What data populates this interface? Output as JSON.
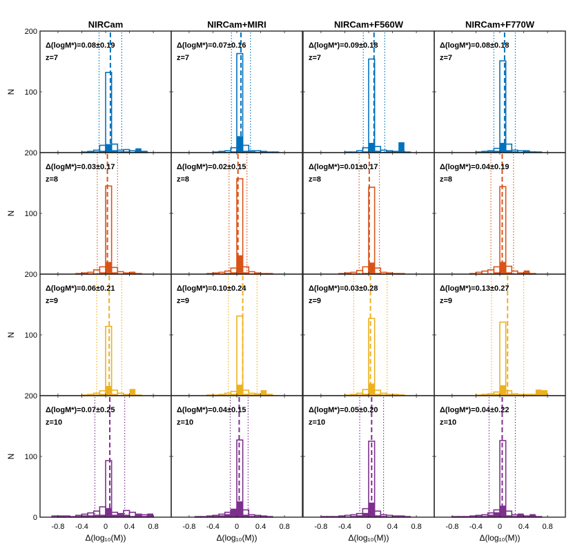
{
  "chart_data": {
    "type": "bar",
    "layout": "4x4 grid of histograms (rows: redshift, columns: filter set)",
    "columns": [
      "NIRCam",
      "NIRCam+MIRI",
      "NIRCam+F560W",
      "NIRCam+F770W"
    ],
    "rows": [
      {
        "z": "z=7",
        "color": "#0072BD"
      },
      {
        "z": "z=8",
        "color": "#D95319"
      },
      {
        "z": "z=9",
        "color": "#EDB120"
      },
      {
        "z": "z=10",
        "color": "#7E2F8E"
      }
    ],
    "xlabel": "Δ(log₁₀(M))",
    "ylabel": "N",
    "xlim": [
      -1.1,
      1.1
    ],
    "ylim": [
      0,
      200
    ],
    "xticks": [
      -0.8,
      -0.4,
      0,
      0.4,
      0.8
    ],
    "xtick_labels": [
      "-0.8",
      "-0.4",
      "0",
      "0.4",
      "0.8"
    ],
    "yticks": [
      0,
      100,
      200
    ],
    "ytick_labels": [
      "0",
      "100",
      "200"
    ],
    "bin_width": 0.1,
    "bin_centers": [
      -0.95,
      -0.85,
      -0.75,
      -0.65,
      -0.55,
      -0.45,
      -0.35,
      -0.25,
      -0.15,
      -0.05,
      0.05,
      0.15,
      0.25,
      0.35,
      0.45,
      0.55,
      0.65,
      0.75,
      0.85,
      0.95
    ],
    "panels": [
      [
        {
          "stat_text": "Δ(logM*)=0.08±0.19",
          "mean": 0.08,
          "sigma": 0.19,
          "outline": [
            0,
            0,
            0,
            0,
            0,
            0,
            1,
            2,
            4,
            12,
            132,
            14,
            4,
            5,
            3,
            2,
            1,
            0,
            0,
            0
          ],
          "filled": [
            0,
            0,
            0,
            0,
            0,
            0,
            0,
            1,
            2,
            3,
            14,
            4,
            2,
            2,
            1,
            7,
            3,
            0,
            0,
            0
          ]
        },
        {
          "stat_text": "Δ(logM*)=0.07±0.16",
          "mean": 0.07,
          "sigma": 0.16,
          "outline": [
            0,
            0,
            0,
            0,
            0,
            0,
            1,
            2,
            3,
            8,
            163,
            12,
            3,
            3,
            2,
            1,
            1,
            0,
            0,
            0
          ],
          "filled": [
            0,
            0,
            0,
            0,
            0,
            0,
            0,
            0,
            1,
            2,
            27,
            3,
            2,
            1,
            2,
            1,
            0,
            0,
            0,
            0
          ]
        },
        {
          "stat_text": "Δ(logM*)=0.09±0.18",
          "mean": 0.09,
          "sigma": 0.18,
          "outline": [
            0,
            0,
            0,
            0,
            0,
            0,
            1,
            1,
            3,
            8,
            154,
            10,
            4,
            3,
            2,
            2,
            1,
            0,
            0,
            0
          ],
          "filled": [
            0,
            0,
            0,
            0,
            0,
            0,
            0,
            0,
            1,
            2,
            16,
            3,
            1,
            2,
            2,
            17,
            1,
            0,
            0,
            0
          ]
        },
        {
          "stat_text": "Δ(logM*)=0.08±0.18",
          "mean": 0.08,
          "sigma": 0.18,
          "outline": [
            0,
            0,
            0,
            0,
            0,
            0,
            1,
            2,
            3,
            7,
            151,
            14,
            4,
            3,
            2,
            1,
            1,
            0,
            0,
            0
          ],
          "filled": [
            0,
            0,
            0,
            0,
            0,
            0,
            0,
            1,
            2,
            3,
            16,
            4,
            2,
            1,
            4,
            2,
            1,
            0,
            0,
            0
          ]
        }
      ],
      [
        {
          "stat_text": "Δ(logM*)=0.03±0.17",
          "mean": 0.03,
          "sigma": 0.17,
          "outline": [
            0,
            0,
            0,
            0,
            0,
            1,
            2,
            3,
            7,
            12,
            145,
            11,
            4,
            2,
            1,
            1,
            0,
            0,
            0,
            0
          ],
          "filled": [
            0,
            0,
            0,
            0,
            0,
            0,
            0,
            1,
            1,
            3,
            20,
            3,
            1,
            1,
            4,
            1,
            0,
            0,
            0,
            0
          ]
        },
        {
          "stat_text": "Δ(logM*)=0.02±0.15",
          "mean": 0.02,
          "sigma": 0.15,
          "outline": [
            0,
            0,
            0,
            0,
            0,
            1,
            2,
            3,
            5,
            10,
            157,
            12,
            4,
            2,
            1,
            1,
            0,
            0,
            0,
            0
          ],
          "filled": [
            0,
            0,
            0,
            0,
            0,
            0,
            0,
            1,
            2,
            3,
            31,
            3,
            1,
            1,
            0,
            0,
            0,
            0,
            0,
            0
          ]
        },
        {
          "stat_text": "Δ(logM*)=0.01±0.17",
          "mean": 0.01,
          "sigma": 0.17,
          "outline": [
            0,
            0,
            0,
            0,
            0,
            1,
            2,
            3,
            6,
            12,
            143,
            10,
            3,
            2,
            1,
            1,
            0,
            0,
            0,
            0
          ],
          "filled": [
            0,
            0,
            0,
            0,
            0,
            0,
            0,
            1,
            1,
            2,
            19,
            2,
            1,
            1,
            0,
            0,
            0,
            0,
            0,
            0
          ]
        },
        {
          "stat_text": "Δ(logM*)=0.04±0.19",
          "mean": 0.04,
          "sigma": 0.19,
          "outline": [
            0,
            0,
            0,
            0,
            0,
            1,
            3,
            5,
            7,
            12,
            144,
            13,
            5,
            2,
            2,
            1,
            0,
            0,
            0,
            0
          ],
          "filled": [
            0,
            0,
            0,
            0,
            0,
            0,
            0,
            1,
            1,
            3,
            20,
            3,
            1,
            2,
            6,
            1,
            0,
            0,
            0,
            0
          ]
        }
      ],
      [
        {
          "stat_text": "Δ(logM*)=0.06±0.21",
          "mean": 0.06,
          "sigma": 0.21,
          "outline": [
            0,
            0,
            0,
            0,
            0,
            0,
            1,
            2,
            4,
            8,
            114,
            9,
            4,
            2,
            1,
            1,
            0,
            0,
            0,
            0
          ],
          "filled": [
            0,
            0,
            0,
            0,
            0,
            0,
            1,
            1,
            2,
            3,
            16,
            3,
            1,
            2,
            11,
            1,
            0,
            0,
            0,
            0
          ]
        },
        {
          "stat_text": "Δ(logM*)=0.10±0.24",
          "mean": 0.1,
          "sigma": 0.24,
          "outline": [
            0,
            0,
            0,
            0,
            0,
            1,
            1,
            2,
            4,
            7,
            131,
            9,
            4,
            3,
            2,
            1,
            0,
            0,
            0,
            0
          ],
          "filled": [
            0,
            0,
            0,
            0,
            0,
            0,
            1,
            1,
            2,
            3,
            18,
            3,
            2,
            3,
            9,
            3,
            1,
            0,
            0,
            0
          ]
        },
        {
          "stat_text": "Δ(logM*)=0.03±0.28",
          "mean": 0.03,
          "sigma": 0.28,
          "outline": [
            0,
            0,
            0,
            0,
            0,
            0,
            1,
            2,
            4,
            10,
            127,
            9,
            4,
            2,
            2,
            1,
            0,
            0,
            0,
            0
          ],
          "filled": [
            0,
            0,
            0,
            0,
            0,
            0,
            1,
            1,
            2,
            3,
            20,
            3,
            2,
            2,
            2,
            2,
            0,
            0,
            0,
            0
          ]
        },
        {
          "stat_text": "Δ(logM*)=0.13±0.27",
          "mean": 0.13,
          "sigma": 0.27,
          "outline": [
            0,
            0,
            0,
            0,
            0,
            0,
            1,
            2,
            3,
            6,
            121,
            8,
            3,
            2,
            2,
            1,
            0,
            0,
            0,
            0
          ],
          "filled": [
            0,
            0,
            0,
            0,
            0,
            0,
            1,
            1,
            2,
            3,
            17,
            3,
            2,
            2,
            2,
            3,
            10,
            9,
            0,
            0
          ]
        }
      ],
      [
        {
          "stat_text": "Δ(logM*)=0.07±0.25",
          "mean": 0.07,
          "sigma": 0.25,
          "outline": [
            0,
            2,
            2,
            2,
            1,
            3,
            5,
            7,
            10,
            17,
            93,
            8,
            6,
            11,
            8,
            5,
            4,
            2,
            0,
            0
          ],
          "filled": [
            0,
            0,
            1,
            1,
            1,
            2,
            3,
            3,
            4,
            4,
            15,
            4,
            5,
            4,
            2,
            4,
            2,
            6,
            0,
            0
          ]
        },
        {
          "stat_text": "Δ(logM*)=0.04±0.15",
          "mean": 0.04,
          "sigma": 0.15,
          "outline": [
            0,
            0,
            0,
            1,
            1,
            2,
            3,
            5,
            8,
            12,
            127,
            12,
            4,
            3,
            2,
            1,
            0,
            0,
            0,
            0
          ],
          "filled": [
            0,
            0,
            0,
            0,
            0,
            1,
            2,
            3,
            5,
            14,
            26,
            4,
            2,
            2,
            1,
            1,
            0,
            0,
            0,
            0
          ]
        },
        {
          "stat_text": "Δ(logM*)=0.05±0.20",
          "mean": 0.05,
          "sigma": 0.2,
          "outline": [
            0,
            0,
            1,
            1,
            1,
            2,
            3,
            4,
            6,
            14,
            125,
            10,
            4,
            3,
            2,
            2,
            1,
            0,
            0,
            0
          ],
          "filled": [
            0,
            0,
            0,
            0,
            0,
            1,
            1,
            2,
            3,
            7,
            24,
            3,
            2,
            1,
            1,
            1,
            0,
            0,
            0,
            0
          ]
        },
        {
          "stat_text": "Δ(logM*)=0.04±0.22",
          "mean": 0.04,
          "sigma": 0.22,
          "outline": [
            0,
            0,
            1,
            1,
            1,
            2,
            3,
            4,
            7,
            12,
            126,
            10,
            4,
            3,
            2,
            2,
            1,
            0,
            0,
            0
          ],
          "filled": [
            0,
            0,
            0,
            0,
            0,
            1,
            2,
            2,
            4,
            8,
            19,
            3,
            2,
            6,
            2,
            5,
            1,
            0,
            0,
            0
          ]
        }
      ]
    ]
  }
}
